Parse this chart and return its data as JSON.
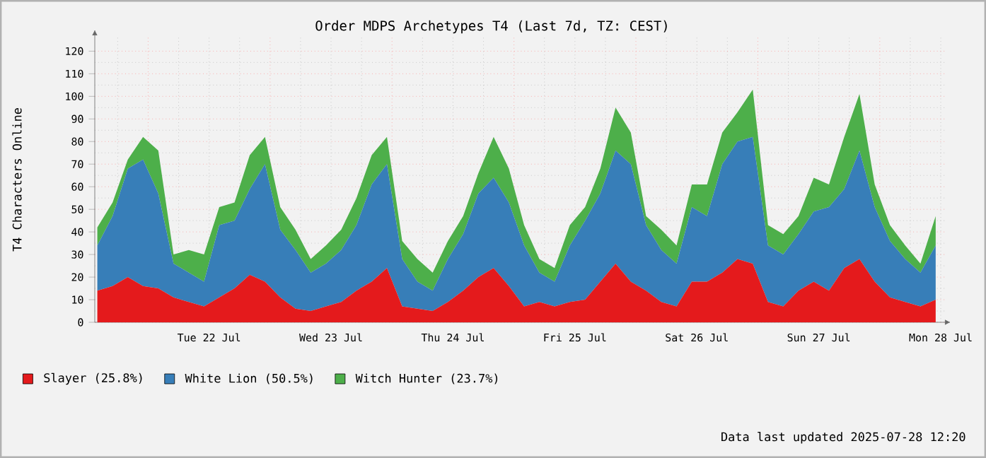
{
  "chart_data": {
    "type": "area",
    "stacked": true,
    "title": "Order MDPS Archetypes T4 (Last 7d, TZ: CEST)",
    "ylabel": "T4 Characters Online",
    "x": [
      "2025-07-21T14:00",
      "2025-07-21T17:00",
      "2025-07-21T20:00",
      "2025-07-21T23:00",
      "2025-07-22T02:00",
      "2025-07-22T05:00",
      "2025-07-22T08:00",
      "2025-07-22T11:00",
      "2025-07-22T14:00",
      "2025-07-22T17:00",
      "2025-07-22T20:00",
      "2025-07-22T23:00",
      "2025-07-23T02:00",
      "2025-07-23T05:00",
      "2025-07-23T08:00",
      "2025-07-23T11:00",
      "2025-07-23T14:00",
      "2025-07-23T17:00",
      "2025-07-23T20:00",
      "2025-07-23T23:00",
      "2025-07-24T02:00",
      "2025-07-24T05:00",
      "2025-07-24T08:00",
      "2025-07-24T11:00",
      "2025-07-24T14:00",
      "2025-07-24T17:00",
      "2025-07-24T20:00",
      "2025-07-24T23:00",
      "2025-07-25T02:00",
      "2025-07-25T05:00",
      "2025-07-25T08:00",
      "2025-07-25T11:00",
      "2025-07-25T14:00",
      "2025-07-25T17:00",
      "2025-07-25T20:00",
      "2025-07-25T23:00",
      "2025-07-26T02:00",
      "2025-07-26T05:00",
      "2025-07-26T08:00",
      "2025-07-26T11:00",
      "2025-07-26T14:00",
      "2025-07-26T17:00",
      "2025-07-26T20:00",
      "2025-07-26T23:00",
      "2025-07-27T02:00",
      "2025-07-27T05:00",
      "2025-07-27T08:00",
      "2025-07-27T11:00",
      "2025-07-27T14:00",
      "2025-07-27T17:00",
      "2025-07-27T20:00",
      "2025-07-27T23:00",
      "2025-07-28T02:00",
      "2025-07-28T05:00",
      "2025-07-28T08:00",
      "2025-07-28T11:00"
    ],
    "series": [
      {
        "name": "Slayer (25.8%)",
        "color": "#e41a1c",
        "values": [
          14,
          16,
          20,
          16,
          15,
          11,
          9,
          7,
          11,
          15,
          21,
          18,
          11,
          6,
          5,
          7,
          9,
          14,
          18,
          24,
          7,
          6,
          5,
          9,
          14,
          20,
          24,
          16,
          7,
          9,
          7,
          9,
          10,
          18,
          26,
          18,
          14,
          9,
          7,
          18,
          18,
          22,
          28,
          26,
          9,
          7,
          14,
          18,
          14,
          24,
          28,
          18,
          11,
          9,
          7,
          10
        ]
      },
      {
        "name": "White Lion (50.5%)",
        "color": "#377eb8",
        "values": [
          20,
          31,
          48,
          56,
          42,
          15,
          13,
          11,
          32,
          30,
          38,
          52,
          30,
          26,
          17,
          19,
          23,
          29,
          43,
          46,
          21,
          12,
          9,
          19,
          25,
          37,
          40,
          37,
          27,
          13,
          11,
          25,
          35,
          39,
          50,
          52,
          29,
          23,
          19,
          33,
          29,
          48,
          52,
          56,
          25,
          23,
          25,
          31,
          37,
          35,
          48,
          33,
          25,
          19,
          15,
          24
        ]
      },
      {
        "name": "Witch Hunter (23.7%)",
        "color": "#4daf4a",
        "values": [
          8,
          6,
          4,
          10,
          19,
          4,
          10,
          12,
          8,
          8,
          15,
          12,
          10,
          9,
          6,
          8,
          9,
          12,
          13,
          12,
          8,
          10,
          8,
          8,
          8,
          9,
          18,
          15,
          9,
          6,
          6,
          9,
          6,
          11,
          19,
          14,
          4,
          9,
          8,
          10,
          14,
          14,
          13,
          21,
          9,
          9,
          8,
          15,
          10,
          23,
          25,
          10,
          7,
          6,
          4,
          13
        ]
      }
    ],
    "xlim": [
      "2025-07-21T13:30",
      "2025-07-28T12:50"
    ],
    "xticks": [
      {
        "value": "2025-07-22T12:00",
        "label": "Tue 22 Jul"
      },
      {
        "value": "2025-07-23T12:00",
        "label": "Wed 23 Jul"
      },
      {
        "value": "2025-07-24T12:00",
        "label": "Thu 24 Jul"
      },
      {
        "value": "2025-07-25T12:00",
        "label": "Fri 25 Jul"
      },
      {
        "value": "2025-07-26T12:00",
        "label": "Sat 26 Jul"
      },
      {
        "value": "2025-07-27T12:00",
        "label": "Sun 27 Jul"
      },
      {
        "value": "2025-07-28T12:00",
        "label": "Mon 28 Jul"
      }
    ],
    "ylim": [
      0,
      127
    ],
    "yticks": [
      0,
      10,
      20,
      30,
      40,
      50,
      60,
      70,
      80,
      90,
      100,
      110,
      120
    ],
    "grid": true,
    "legend": "bottom",
    "annotations": [
      "Data last updated 2025-07-28 12:20"
    ]
  }
}
